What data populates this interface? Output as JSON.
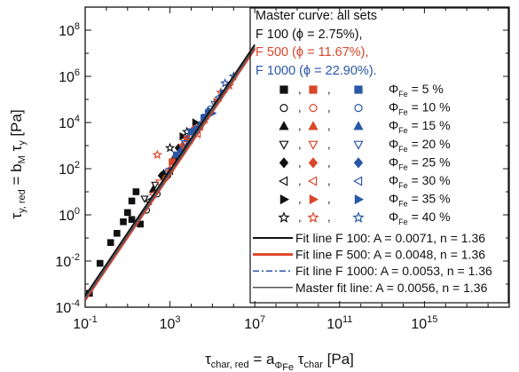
{
  "chart_data": {
    "type": "scatter",
    "xscale": "log",
    "yscale": "log",
    "xlim_exp": [
      -1,
      19
    ],
    "ylim_exp": [
      -4,
      9
    ],
    "xticks": [
      {
        "exp": -1,
        "base": "10",
        "sup": "-1"
      },
      {
        "exp": 3,
        "base": "10",
        "sup": "3"
      },
      {
        "exp": 7,
        "base": "10",
        "sup": "7"
      },
      {
        "exp": 11,
        "base": "10",
        "sup": "11"
      },
      {
        "exp": 15,
        "base": "10",
        "sup": "15"
      }
    ],
    "yticks": [
      {
        "exp": -4,
        "base": "10",
        "sup": "-4"
      },
      {
        "exp": -2,
        "base": "10",
        "sup": "-2"
      },
      {
        "exp": 0,
        "base": "10",
        "sup": "0"
      },
      {
        "exp": 2,
        "base": "10",
        "sup": "2"
      },
      {
        "exp": 4,
        "base": "10",
        "sup": "4"
      },
      {
        "exp": 6,
        "base": "10",
        "sup": "6"
      },
      {
        "exp": 8,
        "base": "10",
        "sup": "8"
      }
    ],
    "xlabel": {
      "main": "τ",
      "sub1": "char, red",
      "eq": " = a",
      "sub2": "Φ",
      "sub2b": "Fe",
      "main2": " τ",
      "sub3": "char",
      "unit": "  [Pa]"
    },
    "ylabel": {
      "main": "τ",
      "sub1": "y, red",
      "eq": " = b",
      "sub2": "M",
      "main2": " τ",
      "sub3": "y",
      "unit": "  [Pa]"
    },
    "legend": {
      "title": "Master curve: all sets",
      "sets": [
        {
          "text": "F 100 (ϕ = 2.75%),",
          "color": "#111111"
        },
        {
          "text": "F 500 (ϕ = 11.67%),",
          "color": "#d9472b"
        },
        {
          "text": "F 1000 (ϕ = 22.90%).",
          "color": "#2a57a8"
        }
      ],
      "phi_symbol": "Φ",
      "phi_sub": "Fe",
      "rows": [
        {
          "marker": "square-filled",
          "value": "=   5 %"
        },
        {
          "marker": "circle-open",
          "value": "=  10 %"
        },
        {
          "marker": "triangle-up-filled",
          "value": "=  15 %"
        },
        {
          "marker": "triangle-down-open",
          "value": "=  20 %"
        },
        {
          "marker": "diamond-filled",
          "value": "=  25 %"
        },
        {
          "marker": "triangle-left-open",
          "value": "=  30 %"
        },
        {
          "marker": "triangle-right-filled",
          "value": "=  35 %"
        },
        {
          "marker": "star-open",
          "value": "=  40 %"
        }
      ],
      "fit_lines": [
        {
          "label": "Fit line F 100: A = 0.0071, n = 1.36",
          "color": "#111111",
          "dash": "none",
          "width": 2
        },
        {
          "label": "Fit line F 500: A = 0.0048, n = 1.36",
          "color": "#e0442a",
          "dash": "none",
          "width": 3
        },
        {
          "label": "Fit line F 1000: A = 0.0053, n = 1.36",
          "color": "#2a57a8",
          "dash": "7,3,2,3",
          "width": 1.5
        },
        {
          "label": "Master fit line: A = 0.0056, n = 1.36",
          "color": "#555555",
          "dash": "none",
          "width": 1.5
        }
      ]
    },
    "colors": {
      "F100": "#111111",
      "F500": "#d9472b",
      "F1000": "#2a57a8"
    },
    "fit_line": {
      "x_exp_range": [
        -1,
        7
      ],
      "log10_A": -2.25,
      "n": 1.36
    },
    "series": [
      {
        "name": "F 100",
        "color": "#111111",
        "points": [
          {
            "m": "square-filled",
            "x": -0.8,
            "y": -3.4
          },
          {
            "m": "square-filled",
            "x": -0.3,
            "y": -2.1
          },
          {
            "m": "square-filled",
            "x": 0.2,
            "y": -1.2
          },
          {
            "m": "square-filled",
            "x": 0.5,
            "y": -0.8
          },
          {
            "m": "square-filled",
            "x": 0.8,
            "y": -0.3
          },
          {
            "m": "square-filled",
            "x": 1.0,
            "y": 0.1
          },
          {
            "m": "square-filled",
            "x": 1.2,
            "y": 0.6
          },
          {
            "m": "square-filled",
            "x": 1.4,
            "y": 1.0
          },
          {
            "m": "square-filled",
            "x": 1.6,
            "y": -0.4
          },
          {
            "m": "square-filled",
            "x": 1.2,
            "y": -0.2
          },
          {
            "m": "circle-open",
            "x": 1.9,
            "y": 0.2
          },
          {
            "m": "circle-open",
            "x": 2.4,
            "y": 0.9
          },
          {
            "m": "circle-open",
            "x": 2.9,
            "y": 1.7
          },
          {
            "m": "triangle-up-filled",
            "x": 2.2,
            "y": 1.1
          },
          {
            "m": "triangle-up-filled",
            "x": 2.7,
            "y": 1.8
          },
          {
            "m": "triangle-up-filled",
            "x": 3.2,
            "y": 2.5
          },
          {
            "m": "triangle-down-open",
            "x": 1.8,
            "y": 0.7
          },
          {
            "m": "triangle-down-open",
            "x": 2.3,
            "y": 1.3
          },
          {
            "m": "diamond-filled",
            "x": 2.6,
            "y": 1.7
          },
          {
            "m": "diamond-filled",
            "x": 3.4,
            "y": 2.9
          },
          {
            "m": "triangle-left-open",
            "x": 2.0,
            "y": 0.6
          },
          {
            "m": "triangle-left-open",
            "x": 3.0,
            "y": 1.9
          },
          {
            "m": "triangle-right-filled",
            "x": 3.6,
            "y": 3.4
          },
          {
            "m": "triangle-right-filled",
            "x": 4.2,
            "y": 4.0
          },
          {
            "m": "star-open",
            "x": 3.0,
            "y": 2.9
          },
          {
            "m": "star-open",
            "x": 3.8,
            "y": 3.6
          }
        ]
      },
      {
        "name": "F 500",
        "color": "#d9472b",
        "points": [
          {
            "m": "square-filled",
            "x": 3.1,
            "y": 2.3
          },
          {
            "m": "square-filled",
            "x": 3.8,
            "y": 3.3
          },
          {
            "m": "square-filled",
            "x": 4.4,
            "y": 3.8
          },
          {
            "m": "circle-open",
            "x": 2.8,
            "y": 1.6
          },
          {
            "m": "circle-open",
            "x": 3.5,
            "y": 2.6
          },
          {
            "m": "triangle-up-filled",
            "x": 3.0,
            "y": 2.0
          },
          {
            "m": "triangle-up-filled",
            "x": 3.9,
            "y": 3.2
          },
          {
            "m": "triangle-up-filled",
            "x": 4.6,
            "y": 4.1
          },
          {
            "m": "triangle-down-open",
            "x": 2.5,
            "y": 1.4
          },
          {
            "m": "triangle-down-open",
            "x": 3.3,
            "y": 2.4
          },
          {
            "m": "diamond-filled",
            "x": 3.6,
            "y": 3.0
          },
          {
            "m": "diamond-filled",
            "x": 4.1,
            "y": 3.7
          },
          {
            "m": "triangle-left-open",
            "x": 2.2,
            "y": 0.9
          },
          {
            "m": "triangle-left-open",
            "x": 4.3,
            "y": 3.5
          },
          {
            "m": "triangle-right-filled",
            "x": 4.8,
            "y": 4.4
          },
          {
            "m": "triangle-right-filled",
            "x": 5.2,
            "y": 4.9
          },
          {
            "m": "star-open",
            "x": 2.4,
            "y": 2.6
          },
          {
            "m": "star-open",
            "x": 5.4,
            "y": 5.3
          },
          {
            "m": "star-open",
            "x": 5.8,
            "y": 5.6
          }
        ]
      },
      {
        "name": "F 1000",
        "color": "#2a57a8",
        "points": [
          {
            "m": "square-filled",
            "x": 3.3,
            "y": 2.6
          },
          {
            "m": "square-filled",
            "x": 4.0,
            "y": 3.6
          },
          {
            "m": "square-filled",
            "x": 4.6,
            "y": 4.2
          },
          {
            "m": "circle-open",
            "x": 2.9,
            "y": 1.9
          },
          {
            "m": "circle-open",
            "x": 4.9,
            "y": 4.6
          },
          {
            "m": "triangle-up-filled",
            "x": 3.5,
            "y": 2.8
          },
          {
            "m": "triangle-up-filled",
            "x": 4.4,
            "y": 3.9
          },
          {
            "m": "triangle-down-open",
            "x": 3.7,
            "y": 3.1
          },
          {
            "m": "triangle-down-open",
            "x": 5.1,
            "y": 4.8
          },
          {
            "m": "diamond-filled",
            "x": 4.2,
            "y": 3.7
          },
          {
            "m": "diamond-filled",
            "x": 4.8,
            "y": 4.5
          },
          {
            "m": "triangle-left-open",
            "x": 3.9,
            "y": 3.4
          },
          {
            "m": "triangle-left-open",
            "x": 5.3,
            "y": 5.1
          },
          {
            "m": "triangle-right-filled",
            "x": 5.0,
            "y": 4.4
          },
          {
            "m": "triangle-right-filled",
            "x": 5.5,
            "y": 5.3
          },
          {
            "m": "star-open",
            "x": 5.6,
            "y": 5.7
          },
          {
            "m": "star-open",
            "x": 6.0,
            "y": 6.0
          },
          {
            "m": "star-open",
            "x": 4.7,
            "y": 4.3
          }
        ]
      }
    ]
  }
}
